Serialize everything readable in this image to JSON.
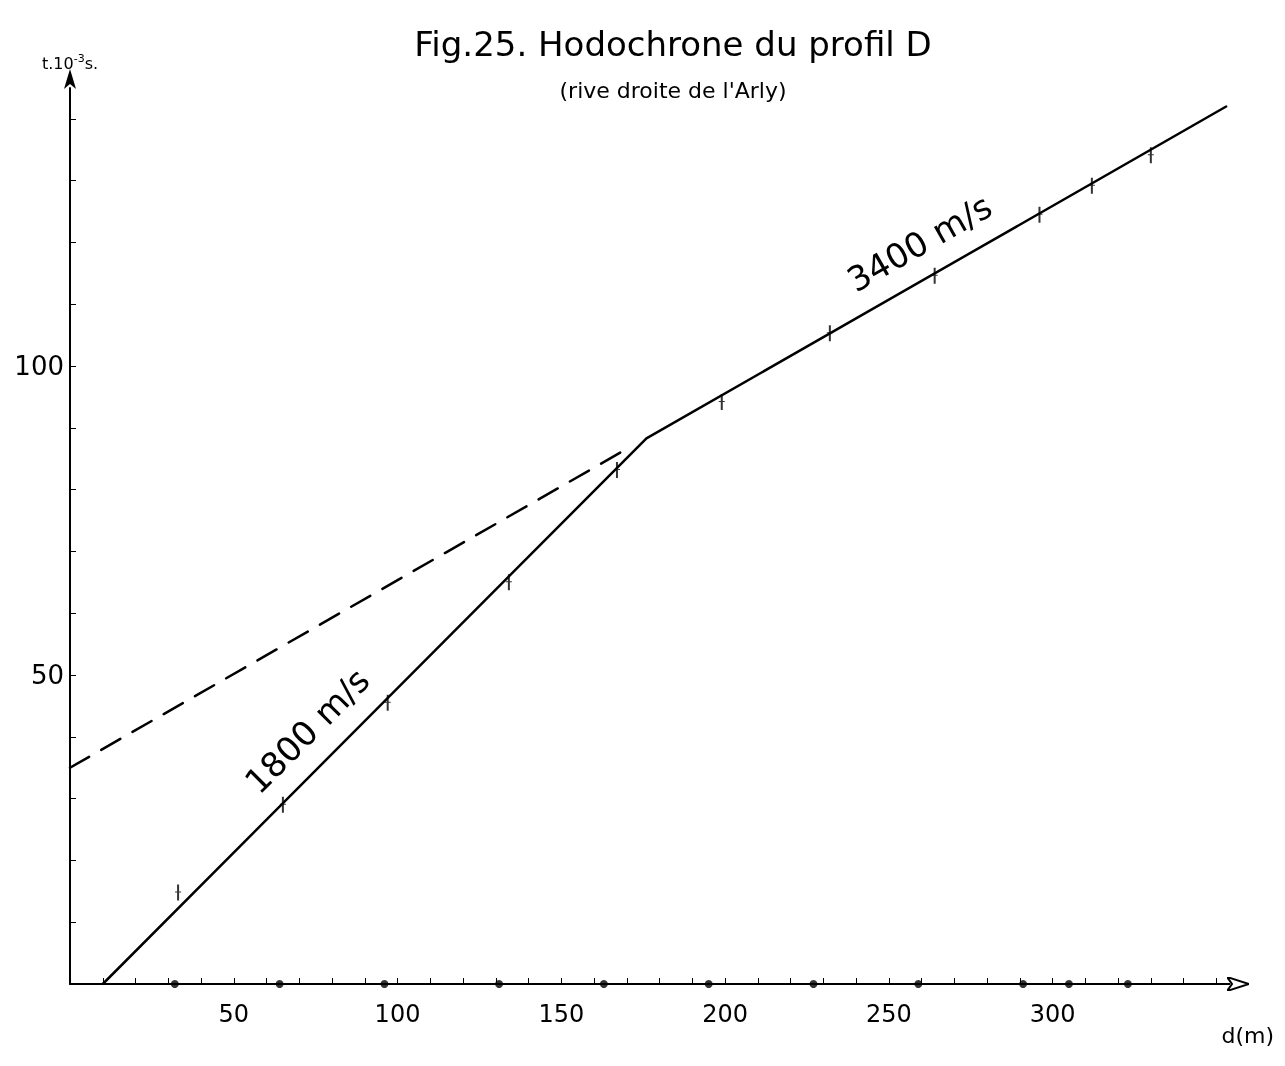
{
  "chart_data": {
    "type": "line",
    "title": "Fig.25. Hodochrone du profil D",
    "subtitle": "(rive droite de l'Arly)",
    "xlabel": "d(m)",
    "ylabel": "t.10$^{-3}$s.",
    "xlim": [
      0,
      354
    ],
    "ylim": [
      0,
      145
    ],
    "xticks": [
      {
        "value": 0,
        "label": null
      },
      {
        "value": 10,
        "label": null
      },
      {
        "value": 20,
        "label": null
      },
      {
        "value": 30,
        "label": null
      },
      {
        "value": 40,
        "label": null
      },
      50,
      {
        "value": 60,
        "label": null
      },
      {
        "value": 70,
        "label": null
      },
      {
        "value": 80,
        "label": null
      },
      {
        "value": 90,
        "label": null
      },
      100,
      {
        "value": 110,
        "label": null
      },
      {
        "value": 120,
        "label": null
      },
      {
        "value": 130,
        "label": null
      },
      {
        "value": 140,
        "label": null
      },
      150,
      {
        "value": 160,
        "label": null
      },
      {
        "value": 170,
        "label": null
      },
      {
        "value": 180,
        "label": null
      },
      {
        "value": 190,
        "label": null
      },
      200,
      {
        "value": 210,
        "label": null
      },
      {
        "value": 220,
        "label": null
      },
      {
        "value": 230,
        "label": null
      },
      {
        "value": 240,
        "label": null
      },
      250,
      {
        "value": 260,
        "label": null
      },
      {
        "value": 270,
        "label": null
      },
      {
        "value": 280,
        "label": null
      },
      {
        "value": 290,
        "label": null
      },
      300,
      {
        "value": 310,
        "label": null
      },
      {
        "value": 320,
        "label": null
      },
      {
        "value": 330,
        "label": null
      },
      {
        "value": 340,
        "label": null
      },
      {
        "value": 350,
        "label": null
      }
    ],
    "yticks": [
      {
        "value": 0,
        "label": null
      },
      {
        "value": 10,
        "label": null
      },
      {
        "value": 20,
        "label": null
      },
      {
        "value": 30,
        "label": null
      },
      {
        "value": 40,
        "label": null
      },
      50,
      {
        "value": 60,
        "label": null
      },
      {
        "value": 70,
        "label": null
      },
      {
        "value": 80,
        "label": null
      },
      {
        "value": 90,
        "label": null
      },
      100,
      {
        "value": 110,
        "label": null
      },
      {
        "value": 120,
        "label": null
      },
      {
        "value": 130,
        "label": null
      },
      {
        "value": 140,
        "label": null
      }
    ],
    "grid": false,
    "series": [
      {
        "color": "#000000",
        "line_style": "solid",
        "x": [
          10,
          176,
          353
        ],
        "values": [
          0,
          88.3,
          142
        ]
      },
      {
        "color": "#000000",
        "line_style": "dashed",
        "x": [
          0,
          171
        ],
        "values": [
          35,
          86.9
        ]
      },
      {
        "type": "scatter",
        "color": "#000000",
        "marker": "cross",
        "x": [
          33,
          65,
          97,
          134,
          167,
          199,
          232,
          264,
          296,
          312,
          330
        ],
        "values": [
          14.8,
          29,
          45.5,
          65,
          83.2,
          94.2,
          105.3,
          114.6,
          124.5,
          129.2,
          134.1
        ]
      },
      {
        "type": "scatter",
        "color": "#000000",
        "marker": "circle",
        "x": [
          32,
          64,
          96,
          131,
          163,
          195,
          227,
          259,
          291,
          305,
          323
        ],
        "values": [
          0,
          0,
          0,
          0,
          0,
          0,
          0,
          0,
          0,
          0,
          0
        ]
      }
    ],
    "annotations": [
      "1800 m/s",
      "3400 m/s"
    ]
  }
}
